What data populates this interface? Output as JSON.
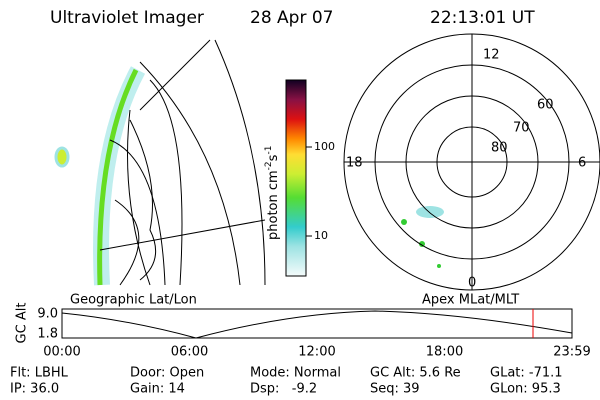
{
  "header": {
    "title": "Ultraviolet Imager",
    "date": "28 Apr 07",
    "time": "22:13:01 UT"
  },
  "colorbar": {
    "label": {
      "text": "photon cm",
      "exp1": "-2",
      "unit2": "s",
      "exp2": "-1"
    },
    "ticks": [
      "100",
      "10"
    ]
  },
  "polar": {
    "clock": [
      "12",
      "6",
      "0",
      "18"
    ],
    "lat": [
      "60",
      "70",
      "80"
    ]
  },
  "altitude_plot": {
    "ylabel": "GC Alt",
    "yticks": [
      "9.0",
      "1.8"
    ],
    "left_caption": "Geographic Lat/Lon",
    "right_caption": "Apex MLat/MLT",
    "xticks": [
      "00:00",
      "06:00",
      "12:00",
      "18:00",
      "23:59"
    ]
  },
  "footer": {
    "rows": [
      [
        "Flt: LBHL",
        "Door: Open",
        "Mode: Normal",
        "GC Alt: 5.6 Re",
        "GLat: -71.1"
      ],
      [
        "IP: 36.0",
        "Gain: 14",
        "Dsp:   -9.2",
        "Seq: 39",
        "GLon: 95.3"
      ]
    ]
  }
}
